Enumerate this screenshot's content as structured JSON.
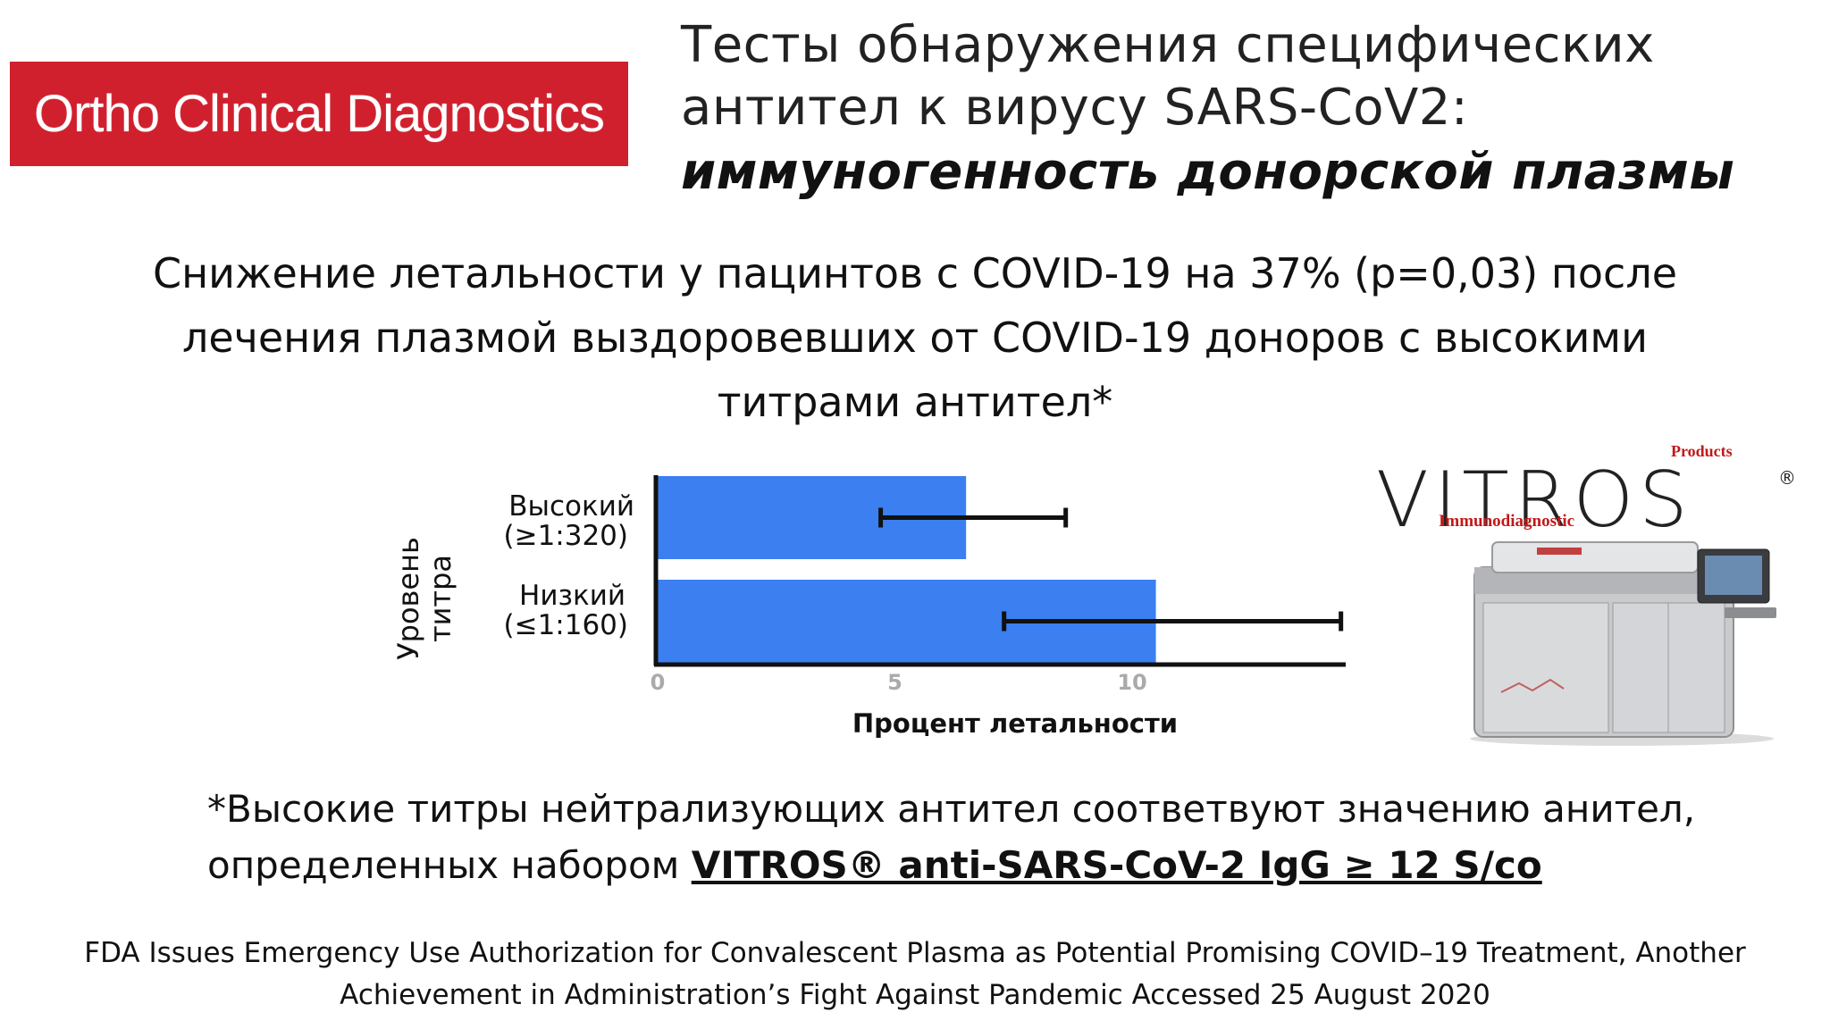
{
  "logo": {
    "text": "Ortho Clinical Diagnostics",
    "bg_color": "#d0202e"
  },
  "title": {
    "line1": "Тесты обнаружения специфических",
    "line2": "антител к вирусу SARS-CoV2:",
    "line3": "иммуногенность донорской плазмы"
  },
  "headline": {
    "line1": "Снижение летальности у пацинтов с COVID-19 на 37% (p=0,03) после",
    "line2": "лечения плазмой выздоровевших от COVID-19 доноров с высокими",
    "line3": "титрами антител*"
  },
  "chart_data": {
    "type": "bar",
    "orientation": "horizontal",
    "ylabel_line1": "Уровень",
    "ylabel_line2": "титра",
    "xlabel": "Процент летальности",
    "xlim": [
      0,
      14.5
    ],
    "xticks": [
      "0",
      "5",
      "10"
    ],
    "xtick_values": [
      0,
      5,
      10
    ],
    "categories": [
      {
        "label1": "Высокий",
        "label2": "(≥1:320)"
      },
      {
        "label1": "Низкий",
        "label2": "(≤1:160)"
      }
    ],
    "values": [
      6.5,
      10.5
    ],
    "error_low": [
      4.7,
      7.3
    ],
    "error_high": [
      8.6,
      14.4
    ],
    "bar_color": "#3b7ff0"
  },
  "product": {
    "brand": "VITROS",
    "reg": "®",
    "products_label": "Products",
    "immuno_label": "Immunodiagnostic"
  },
  "footnote": {
    "line1": "*Высокие титры нейтрализующих антител соответвуют значению анител,",
    "line2_prefix": "определенных набором ",
    "line2_emph": "VITROS® anti-SARS-CoV-2 IgG ≥ 12 S/co"
  },
  "source": {
    "line1": "FDA Issues Emergency Use Authorization for Convalescent Plasma as Potential Promising COVID–19 Treatment, Another",
    "line2": "Achievement in Administration’s Fight Against Pandemic Accessed 25 August 2020"
  }
}
